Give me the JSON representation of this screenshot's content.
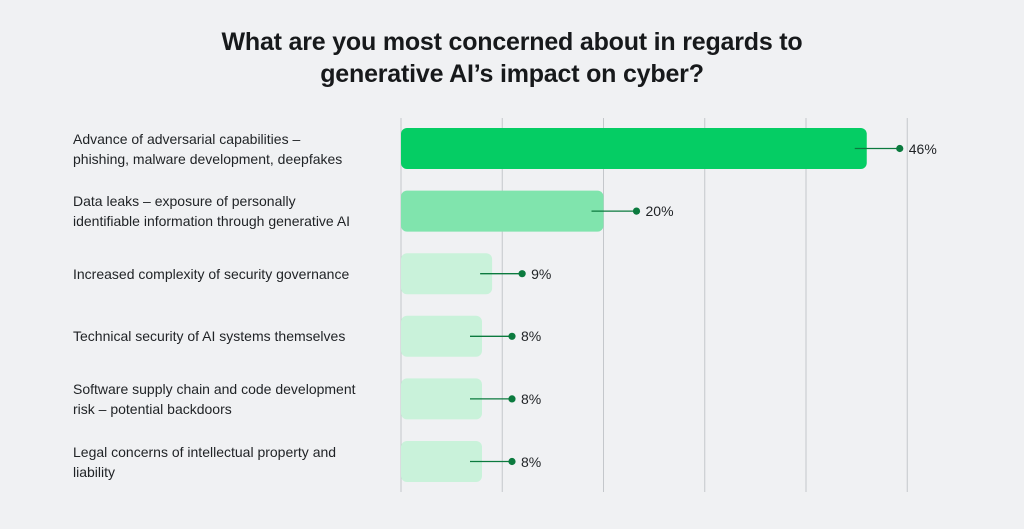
{
  "chart_data": {
    "type": "bar",
    "orientation": "horizontal",
    "title_lines": [
      "What are you most concerned about in regards to",
      "generative AI’s impact on cyber?"
    ],
    "categories": [
      [
        "Advance of adversarial capabilities –",
        "phishing, malware development, deepfakes"
      ],
      [
        "Data leaks – exposure of personally",
        "identifiable information through generative AI"
      ],
      [
        "Increased complexity of security governance"
      ],
      [
        "Technical security of AI systems themselves"
      ],
      [
        "Software supply chain and code development",
        "risk – potential backdoors"
      ],
      [
        "Legal concerns of intellectual property and",
        "liability"
      ]
    ],
    "values": [
      46,
      20,
      9,
      8,
      8,
      8
    ],
    "value_labels": [
      "46%",
      "20%",
      "9%",
      "8%",
      "8%",
      "8%"
    ],
    "xlim": [
      0,
      50
    ],
    "grid": true,
    "colors": {
      "bar_fills": [
        "#05cd64",
        "#80e4ad",
        "#c9f2da",
        "#c9f2da",
        "#c9f2da",
        "#c9f2da"
      ],
      "leader": "#0b7a3e",
      "grid": "#c4c7cb"
    }
  }
}
